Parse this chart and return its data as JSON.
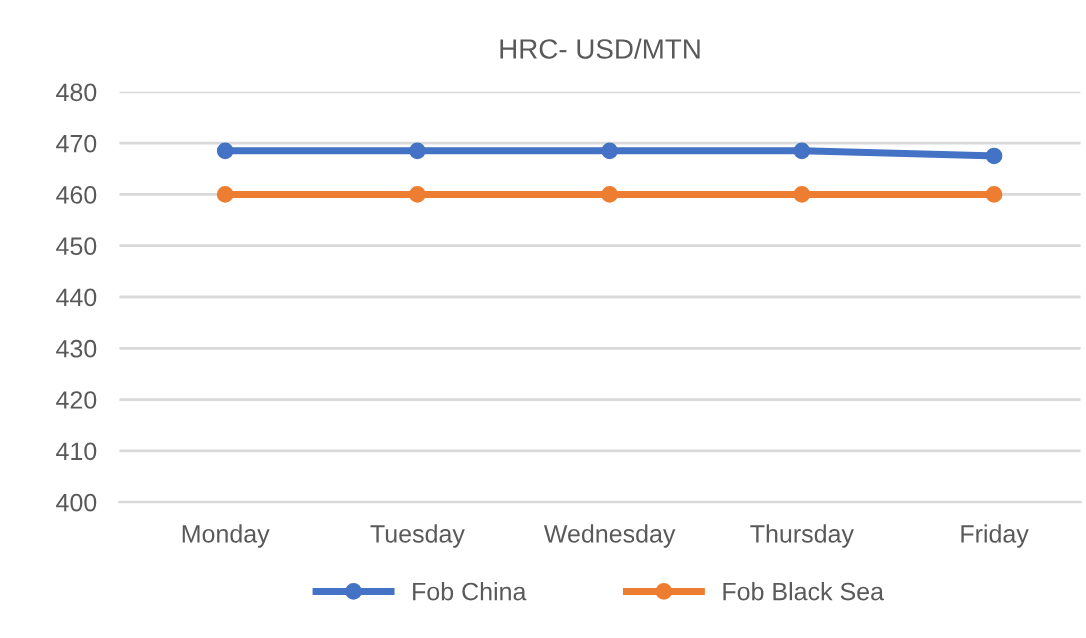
{
  "chart_data": {
    "type": "line",
    "title": "HRC- USD/MTN",
    "categories": [
      "Monday",
      "Tuesday",
      "Wednesday",
      "Thursday",
      "Friday"
    ],
    "series": [
      {
        "name": "Fob China",
        "color": "#4472c4",
        "values": [
          468.5,
          468.5,
          468.5,
          468.5,
          467.5
        ]
      },
      {
        "name": "Fob Black Sea",
        "color": "#ed7d31",
        "values": [
          460,
          460,
          460,
          460,
          460
        ]
      }
    ],
    "ylim": [
      400,
      480
    ],
    "yticks": [
      400,
      410,
      420,
      430,
      440,
      450,
      460,
      470,
      480
    ],
    "grid": "y",
    "legend": "bottom",
    "marker": "circle",
    "line_style": "solid"
  }
}
